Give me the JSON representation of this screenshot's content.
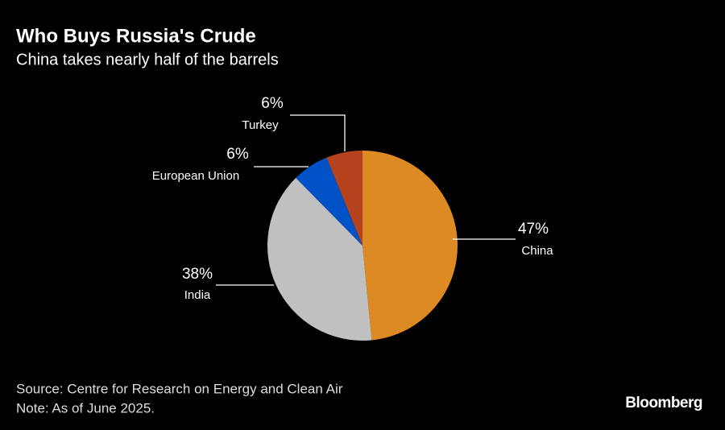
{
  "chart_data": {
    "type": "pie",
    "title": "Who Buys Russia's Crude",
    "subtitle": "China takes nearly half of the barrels",
    "categories": [
      "China",
      "India",
      "European Union",
      "Turkey"
    ],
    "values": [
      47,
      38,
      6,
      6
    ],
    "value_labels": [
      "47%",
      "38%",
      "6%",
      "6%"
    ],
    "colors": [
      "#de8a24",
      "#c0c0c0",
      "#0052c6",
      "#b3421d"
    ],
    "source": "Source: Centre for Research on Energy and Clean Air",
    "note": "Note: As of June 2025.",
    "logo": "Bloomberg"
  }
}
